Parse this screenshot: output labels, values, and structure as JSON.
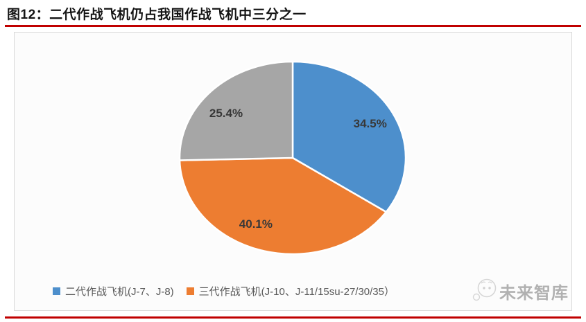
{
  "page": {
    "title": "图12：二代作战飞机仍占我国作战飞机中三分之一"
  },
  "colors": {
    "accent_red": "#c00000",
    "chart_border": "#d9d9d9",
    "chart_background": "#fcfcfc",
    "data_label_text": "#383838",
    "legend_text": "#595959"
  },
  "chart_data": {
    "type": "pie",
    "title": "图12：二代作战飞机仍占我国作战飞机中三分之一",
    "direction": "clockwise",
    "start_angle_deg": 0,
    "legend_position": "bottom",
    "slices": [
      {
        "name": "二代作战飞机(J-7、J-8)",
        "value": 34.5,
        "data_label": "34.5%",
        "color": "#4d8fcc",
        "in_legend": true
      },
      {
        "name": "三代作战飞机(J-10、J-11/15su-27/30/35）",
        "value": 40.1,
        "data_label": "40.1%",
        "color": "#ed7d31",
        "in_legend": true
      },
      {
        "name": "",
        "value": 25.4,
        "data_label": "25.4%",
        "color": "#a6a6a6",
        "in_legend": false
      }
    ]
  },
  "watermark": {
    "text": "未来智库"
  }
}
